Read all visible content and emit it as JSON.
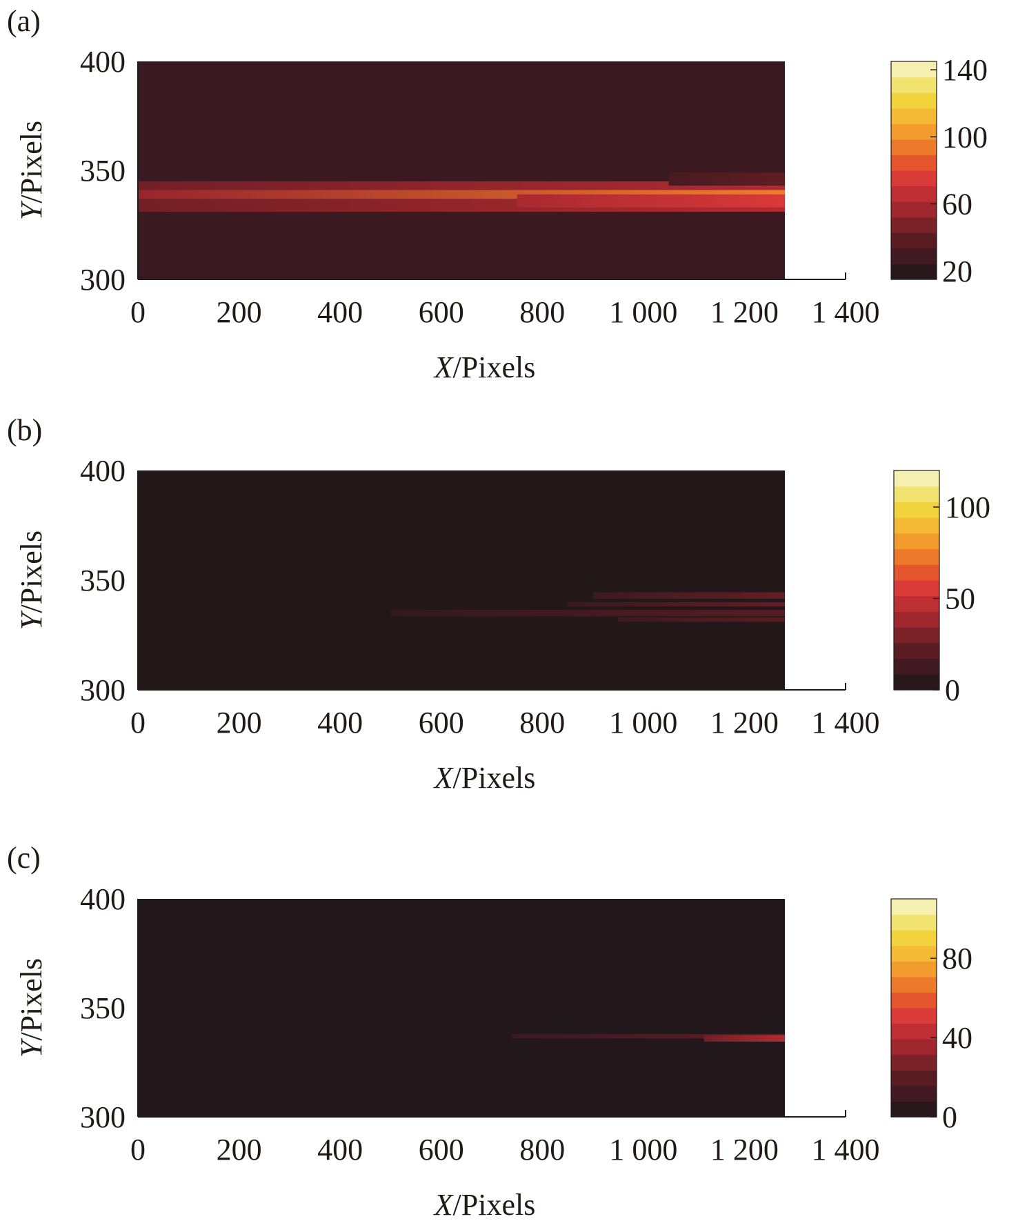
{
  "chart_data": [
    {
      "type": "heatmap",
      "panel_label": "(a)",
      "xlabel": "X/Pixels",
      "ylabel": "Y/Pixels",
      "xlim": [
        0,
        1400
      ],
      "ylim": [
        300,
        400
      ],
      "data_x_extent": [
        0,
        1280
      ],
      "xticks": [
        "0",
        "200",
        "400",
        "600",
        "800",
        "1 000",
        "1 200",
        "1 400"
      ],
      "yticks": [
        "300",
        "350",
        "400"
      ],
      "colorbar": {
        "min": 15,
        "max": 145,
        "ticks": [
          "20",
          "60",
          "100",
          "140"
        ],
        "tick_values": [
          20,
          60,
          100,
          140
        ]
      },
      "background_value": 27,
      "bands": [
        {
          "y": 338,
          "x_start": 0,
          "x_end": 1280,
          "width": 14,
          "value_start": 45,
          "value_end": 62
        },
        {
          "y": 339,
          "x_start": 0,
          "x_end": 1280,
          "width": 4,
          "value_start": 55,
          "value_end": 95
        },
        {
          "y": 336,
          "x_start": 750,
          "x_end": 1280,
          "width": 6,
          "value_start": 60,
          "value_end": 75
        },
        {
          "y": 346,
          "x_start": 1050,
          "x_end": 1280,
          "width": 6,
          "value_start": 32,
          "value_end": 40
        }
      ]
    },
    {
      "type": "heatmap",
      "panel_label": "(b)",
      "xlabel": "X/Pixels",
      "ylabel": "Y/Pixels",
      "xlim": [
        0,
        1400
      ],
      "ylim": [
        300,
        400
      ],
      "data_x_extent": [
        0,
        1280
      ],
      "xticks": [
        "0",
        "200",
        "400",
        "600",
        "800",
        "1 000",
        "1 200",
        "1 400"
      ],
      "yticks": [
        "300",
        "350",
        "400"
      ],
      "colorbar": {
        "min": 0,
        "max": 120,
        "ticks": [
          "0",
          "50",
          "100"
        ],
        "tick_values": [
          0,
          50,
          100
        ]
      },
      "background_value": 2,
      "bands": [
        {
          "y": 335,
          "x_start": 500,
          "x_end": 1280,
          "width": 3,
          "value_start": 8,
          "value_end": 20
        },
        {
          "y": 343,
          "x_start": 900,
          "x_end": 1280,
          "width": 3,
          "value_start": 12,
          "value_end": 24
        },
        {
          "y": 339,
          "x_start": 850,
          "x_end": 1280,
          "width": 2,
          "value_start": 10,
          "value_end": 24
        },
        {
          "y": 332,
          "x_start": 950,
          "x_end": 1280,
          "width": 2,
          "value_start": 12,
          "value_end": 22
        }
      ]
    },
    {
      "type": "heatmap",
      "panel_label": "(c)",
      "xlabel": "X/Pixels",
      "ylabel": "Y/Pixels",
      "xlim": [
        0,
        1400
      ],
      "ylim": [
        300,
        400
      ],
      "data_x_extent": [
        0,
        1280
      ],
      "xticks": [
        "0",
        "200",
        "400",
        "600",
        "800",
        "1 000",
        "1 200",
        "1 400"
      ],
      "yticks": [
        "300",
        "350",
        "400"
      ],
      "colorbar": {
        "min": 0,
        "max": 110,
        "ticks": [
          "0",
          "40",
          "80"
        ],
        "tick_values": [
          0,
          40,
          80
        ]
      },
      "background_value": 2,
      "bands": [
        {
          "y": 337,
          "x_start": 740,
          "x_end": 1280,
          "width": 2,
          "value_start": 10,
          "value_end": 22
        },
        {
          "y": 336,
          "x_start": 1120,
          "x_end": 1280,
          "width": 3,
          "value_start": 25,
          "value_end": 40
        }
      ]
    }
  ],
  "colormap": [
    "#1c1618",
    "#3a1a20",
    "#5a1c22",
    "#86222a",
    "#b22b30",
    "#d8363a",
    "#e85a2c",
    "#f0892a",
    "#f4b232",
    "#f2d23c",
    "#f2e67a",
    "#f8f4d6"
  ]
}
